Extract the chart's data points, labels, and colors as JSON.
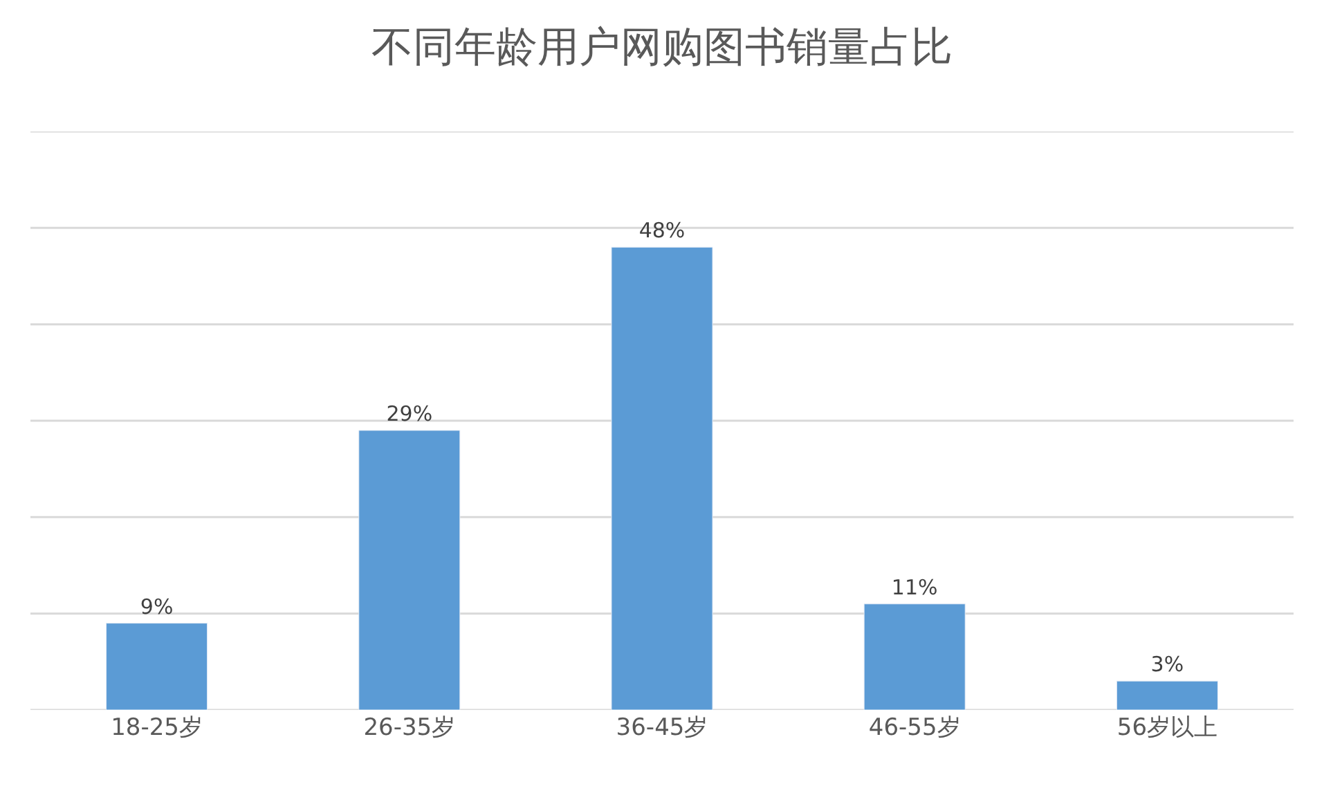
{
  "chart_data": {
    "type": "bar",
    "title": "不同年龄用户网购图书销量占比",
    "categories": [
      "18-25岁",
      "26-35岁",
      "36-45岁",
      "46-55岁",
      "56岁以上"
    ],
    "values": [
      9,
      29,
      48,
      11,
      3
    ],
    "value_labels": [
      "9%",
      "29%",
      "48%",
      "11%",
      "3%"
    ],
    "color": "#5b9bd5",
    "ylim": [
      0,
      60
    ],
    "yticks": [
      {
        "value": 0,
        "label": null
      },
      {
        "value": 10,
        "label": null
      },
      {
        "value": 20,
        "label": null
      },
      {
        "value": 30,
        "label": null
      },
      {
        "value": 40,
        "label": null
      },
      {
        "value": 50,
        "label": null
      },
      {
        "value": 60,
        "label": null
      }
    ],
    "grid": "y",
    "tick_labels": "x",
    "legend": false
  }
}
